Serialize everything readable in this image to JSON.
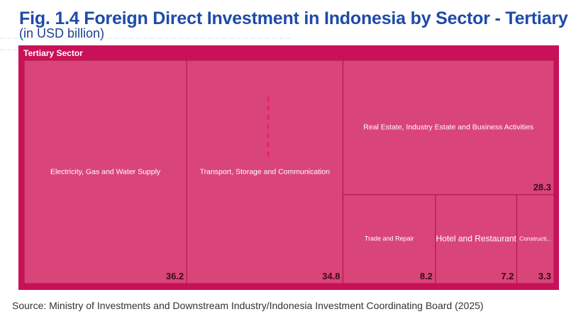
{
  "title": "Fig. 1.4 Foreign Direct Investment in Indonesia by Sector - Tertiary",
  "subtitle": "(in USD billion)",
  "source": "Source: Ministry of Investments and Downstream Industry/Indonesia Investment Coordinating Board (2025)",
  "colors": {
    "title": "#1f4aa8",
    "frame": "#c9115a",
    "tile": "#da4579",
    "tile_border": "#b7174f",
    "value_text": "#3a0a1c"
  },
  "chart_data": {
    "type": "treemap",
    "title": "Fig. 1.4 Foreign Direct Investment in Indonesia by Sector - Tertiary",
    "subtitle": "(in USD billion)",
    "group": "Tertiary Sector",
    "unit": "USD billion",
    "items": [
      {
        "label": "Electricity, Gas and Water Supply",
        "display_label": "Electricity, Gas and Water Supply",
        "value": 36.2
      },
      {
        "label": "Transport, Storage and Communication",
        "display_label": "Transport, Storage and Communication",
        "value": 34.8
      },
      {
        "label": "Real Estate, Industry Estate and Business Activities",
        "display_label": "Real Estate, Industry Estate and Business Activities",
        "value": 28.3
      },
      {
        "label": "Trade and Repair",
        "display_label": "Trade and Repair",
        "value": 8.2
      },
      {
        "label": "Hotel and Restaurant",
        "display_label": "Hotel and Restaurant",
        "value": 7.2
      },
      {
        "label": "Construction",
        "display_label": "Constructi...",
        "value": 3.3
      }
    ]
  }
}
